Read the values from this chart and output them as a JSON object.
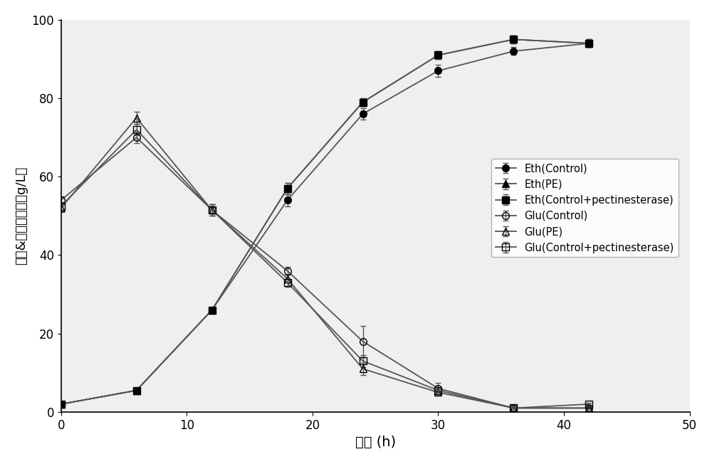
{
  "xlabel": "时间 (h)",
  "ylabel": "酒精&葡萄糖浓度（g/L）",
  "xlim": [
    0,
    50
  ],
  "ylim": [
    0,
    100
  ],
  "xticks": [
    0,
    10,
    20,
    30,
    40,
    50
  ],
  "yticks": [
    0,
    20,
    40,
    60,
    80,
    100
  ],
  "background_color": "#f0eff0",
  "series": [
    {
      "label": "Eth(Control)",
      "x": [
        0,
        6,
        12,
        18,
        24,
        30,
        36,
        42
      ],
      "y": [
        2.0,
        5.5,
        26.0,
        54.0,
        76.0,
        87.0,
        92.0,
        94.0
      ],
      "yerr": [
        0.3,
        0.4,
        0.5,
        1.5,
        1.5,
        1.5,
        1.0,
        1.0
      ],
      "marker": "o",
      "filled": true
    },
    {
      "label": "Eth(PE)",
      "x": [
        0,
        6,
        12,
        18,
        24,
        30,
        36,
        42
      ],
      "y": [
        2.0,
        5.5,
        26.0,
        57.0,
        79.0,
        91.0,
        95.0,
        94.0
      ],
      "yerr": [
        0.3,
        0.4,
        0.5,
        1.5,
        1.0,
        1.0,
        1.0,
        1.0
      ],
      "marker": "^",
      "filled": true
    },
    {
      "label": "Eth(Control+pectinesterase)",
      "x": [
        0,
        6,
        12,
        18,
        24,
        30,
        36,
        42
      ],
      "y": [
        2.0,
        5.5,
        26.0,
        57.0,
        79.0,
        91.0,
        95.0,
        94.0
      ],
      "yerr": [
        0.3,
        0.4,
        0.5,
        1.5,
        1.0,
        1.0,
        1.0,
        1.0
      ],
      "marker": "s",
      "filled": true
    },
    {
      "label": "Glu(Control)",
      "x": [
        0,
        6,
        12,
        18,
        24,
        30,
        36,
        42
      ],
      "y": [
        54.0,
        70.0,
        51.5,
        36.0,
        18.0,
        6.0,
        1.0,
        1.0
      ],
      "yerr": [
        1.0,
        1.5,
        1.5,
        1.0,
        4.0,
        1.5,
        0.3,
        0.3
      ],
      "marker": "o",
      "filled": false
    },
    {
      "label": "Glu(PE)",
      "x": [
        0,
        6,
        12,
        18,
        24,
        30,
        36,
        42
      ],
      "y": [
        52.0,
        75.0,
        51.5,
        34.0,
        11.0,
        5.0,
        1.0,
        1.0
      ],
      "yerr": [
        1.0,
        1.5,
        1.5,
        1.0,
        1.5,
        0.5,
        0.3,
        0.3
      ],
      "marker": "^",
      "filled": false
    },
    {
      "label": "Glu(Control+pectinesterase)",
      "x": [
        0,
        6,
        12,
        18,
        24,
        30,
        36,
        42
      ],
      "y": [
        52.5,
        72.0,
        51.5,
        33.0,
        13.0,
        5.5,
        1.0,
        2.0
      ],
      "yerr": [
        1.0,
        1.5,
        1.5,
        1.0,
        1.5,
        0.5,
        0.3,
        0.3
      ],
      "marker": "s",
      "filled": false
    }
  ]
}
